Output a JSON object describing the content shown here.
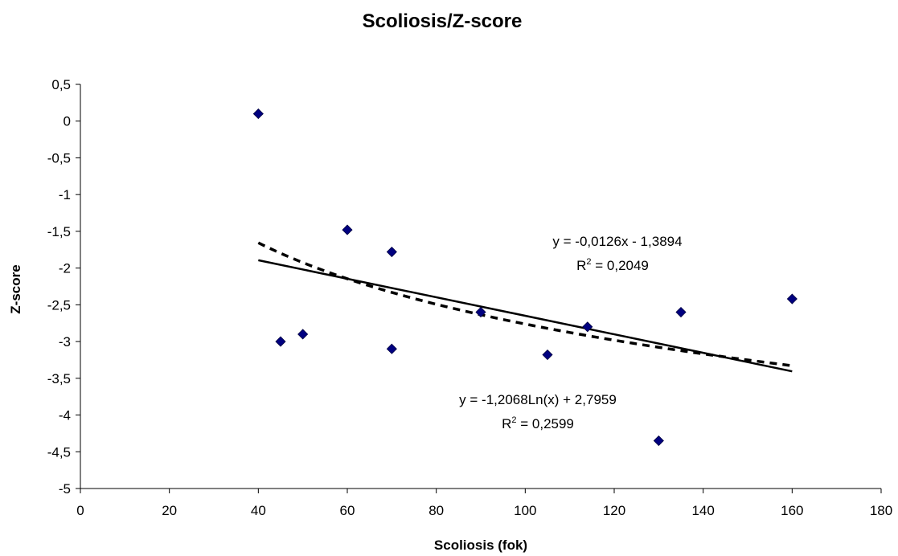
{
  "chart_data": {
    "type": "scatter",
    "title": "Scoliosis/Z-score",
    "xlabel": "Scoliosis (fok)",
    "ylabel": "Z-score",
    "xlim": [
      0,
      180
    ],
    "ylim": [
      -5,
      0.5
    ],
    "x_ticks": [
      0,
      20,
      40,
      60,
      80,
      100,
      120,
      140,
      160,
      180
    ],
    "x_tick_labels": [
      "0",
      "20",
      "40",
      "60",
      "80",
      "100",
      "120",
      "140",
      "160",
      "180"
    ],
    "y_ticks": [
      0.5,
      0,
      -0.5,
      -1,
      -1.5,
      -2,
      -2.5,
      -3,
      -3.5,
      -4,
      -4.5,
      -5
    ],
    "y_tick_labels": [
      "0,5",
      "0",
      "-0,5",
      "-1",
      "-1,5",
      "-2",
      "-2,5",
      "-3",
      "-3,5",
      "-4",
      "-4,5",
      "-5"
    ],
    "grid": false,
    "legend": "none",
    "points": [
      {
        "x": 40,
        "y": 0.1
      },
      {
        "x": 45,
        "y": -3.0
      },
      {
        "x": 50,
        "y": -2.9
      },
      {
        "x": 60,
        "y": -1.48
      },
      {
        "x": 70,
        "y": -1.78
      },
      {
        "x": 70,
        "y": -3.1
      },
      {
        "x": 90,
        "y": -2.6
      },
      {
        "x": 105,
        "y": -3.18
      },
      {
        "x": 114,
        "y": -2.8
      },
      {
        "x": 130,
        "y": -4.35
      },
      {
        "x": 135,
        "y": -2.6
      },
      {
        "x": 160,
        "y": -2.42
      }
    ],
    "marker_color": "#000080",
    "trendlines": [
      {
        "kind": "linear",
        "slope": -0.0126,
        "intercept": -1.3894,
        "x_range": [
          40,
          160
        ],
        "style": "solid",
        "equation": "y = -0,0126x - 1,3894",
        "r2_prefix": "R",
        "r2_suffix": " = 0,2049"
      },
      {
        "kind": "log",
        "a": -1.2068,
        "b": 2.7959,
        "x_range": [
          40,
          160
        ],
        "style": "dashed",
        "equation": "y = -1,2068Ln(x) + 2,7959",
        "r2_prefix": "R",
        "r2_suffix": " = 0,2599"
      }
    ]
  }
}
